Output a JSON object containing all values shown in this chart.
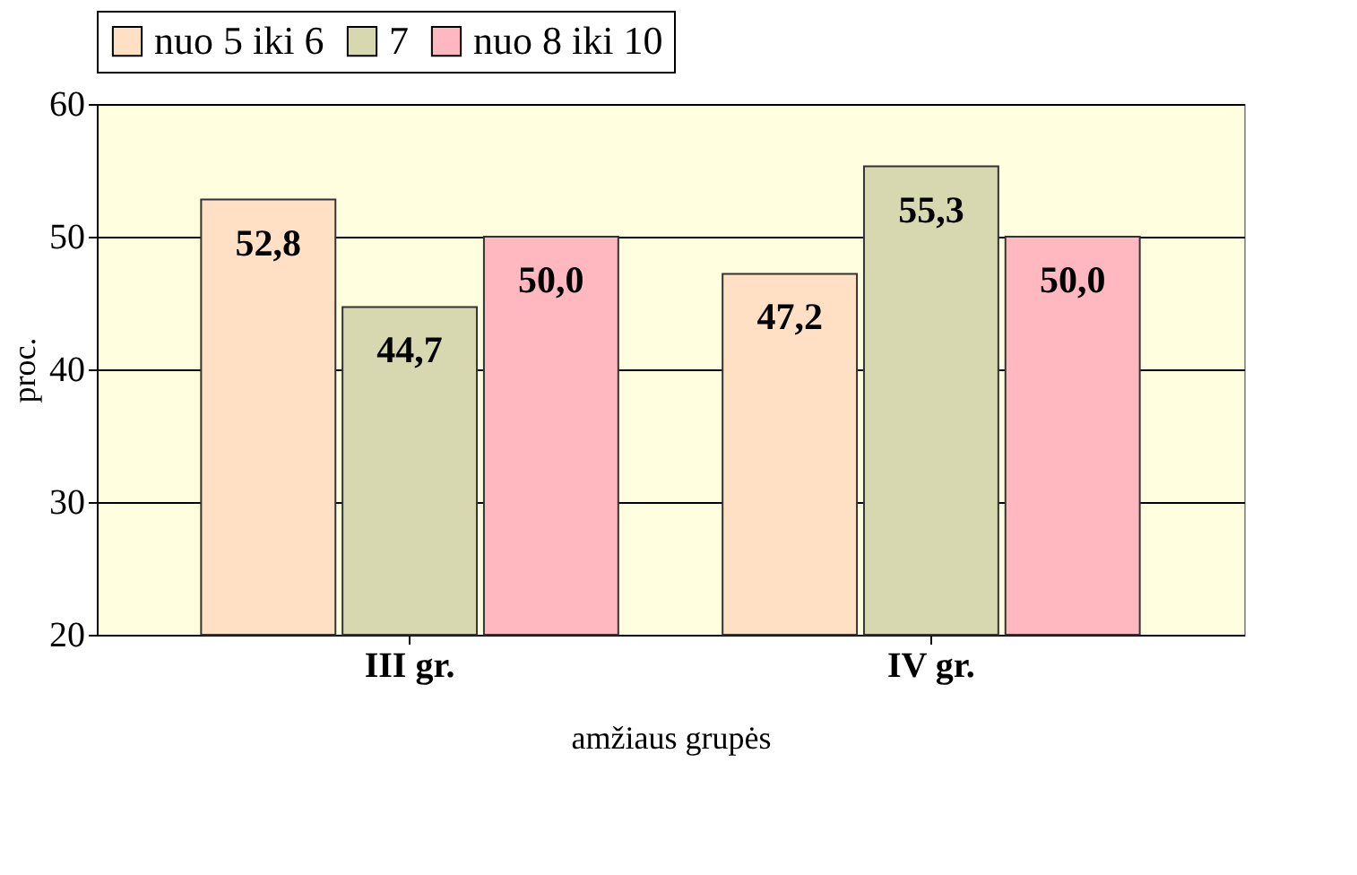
{
  "chart_data": {
    "type": "bar",
    "xlabel": "amžiaus grupės",
    "ylabel": "proc.",
    "categories": [
      "III gr.",
      "IV gr."
    ],
    "series": [
      {
        "name": "nuo 5 iki 6",
        "color": "#ffe0c4",
        "values": [
          52.8,
          47.2
        ],
        "value_labels": [
          "52,8",
          "47,2"
        ]
      },
      {
        "name": "7",
        "color": "#d8d8b0",
        "values": [
          44.7,
          55.3
        ],
        "value_labels": [
          "44,7",
          "55,3"
        ]
      },
      {
        "name": "nuo 8 iki 10",
        "color": "#ffb8c0",
        "values": [
          50.0,
          50.0
        ],
        "value_labels": [
          "50,0",
          "50,0"
        ]
      }
    ],
    "ylim": [
      20,
      60
    ],
    "yticks": [
      20,
      30,
      40,
      50,
      60
    ],
    "grid": "y",
    "legend": "top"
  }
}
